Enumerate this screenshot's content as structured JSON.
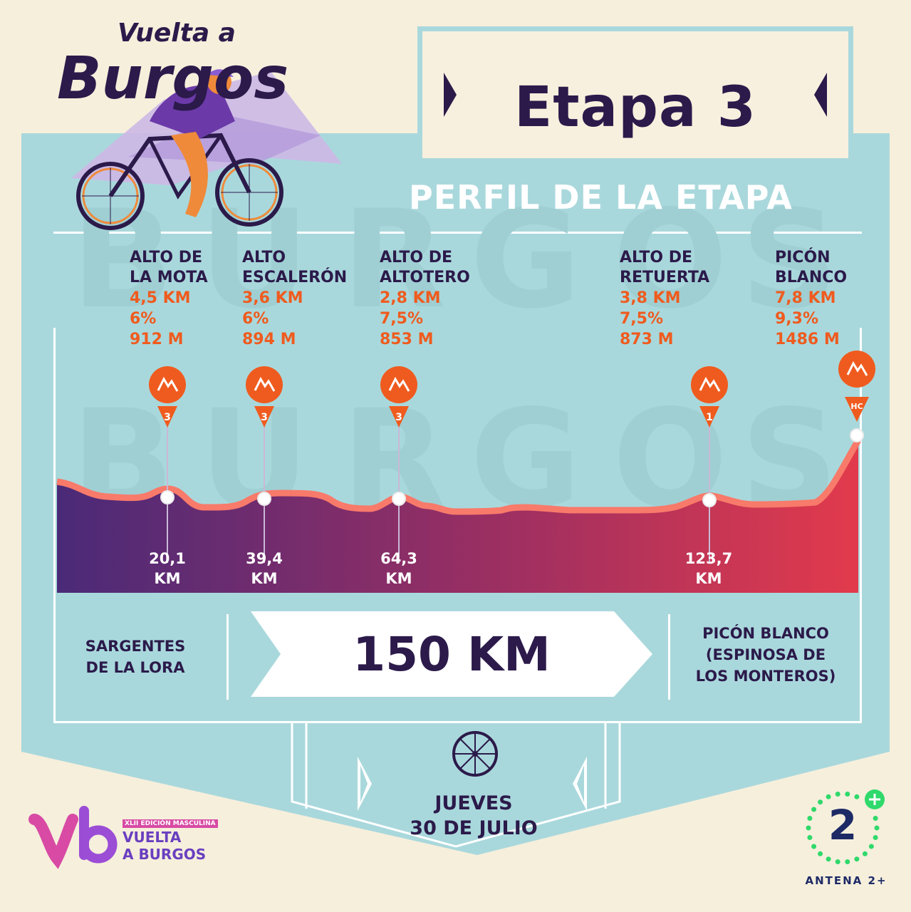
{
  "brand": {
    "logo_top": "Vuelta a",
    "logo_bottom": "Burgos"
  },
  "header": {
    "stage_title": "Etapa 3",
    "subtitle": "PERFIL DE LA ETAPA"
  },
  "climbs": [
    {
      "name": "ALTO DE\nLA MOTA",
      "length": "4,5 KM",
      "gradient": "6%",
      "altitude": "912 M",
      "category": "3",
      "km": "20,1\nKM"
    },
    {
      "name": "ALTO\nESCALERÓN",
      "length": "3,6 KM",
      "gradient": "6%",
      "altitude": "894 M",
      "category": "3",
      "km": "39,4\nKM"
    },
    {
      "name": "ALTO DE\nALTOTERO",
      "length": "2,8 KM",
      "gradient": "7,5%",
      "altitude": "853 M",
      "category": "3",
      "km": "64,3\nKM"
    },
    {
      "name": "ALTO DE\nRETUERTA",
      "length": "3,8 KM",
      "gradient": "7,5%",
      "altitude": "873 M",
      "category": "1",
      "km": "123,7\nKM"
    },
    {
      "name": "PICÓN\nBLANCO",
      "length": "7,8 KM",
      "gradient": "9,3%",
      "altitude": "1486 M",
      "category": "HC",
      "km": ""
    }
  ],
  "route": {
    "start": "SARGENTES\nDE LA LORA",
    "distance": "150 KM",
    "finish": "PICÓN BLANCO\n(ESPINOSA DE\nLOS MONTEROS)"
  },
  "date": {
    "day": "JUEVES",
    "full": "30 DE JULIO"
  },
  "sponsors": {
    "event_edition": "XLII EDICIÓN MASCULINA",
    "event_name_1": "VUELTA",
    "event_name_2": "A BURGOS",
    "tv_name": "ANTENA 2+",
    "tv_number": "2"
  },
  "colors": {
    "navy": "#2b1a4a",
    "orange": "#ef5b1e",
    "teal": "#a9d8dc",
    "cream": "#f6efdc",
    "profile_start": "#4a2a78",
    "profile_end": "#e23a4c"
  }
}
